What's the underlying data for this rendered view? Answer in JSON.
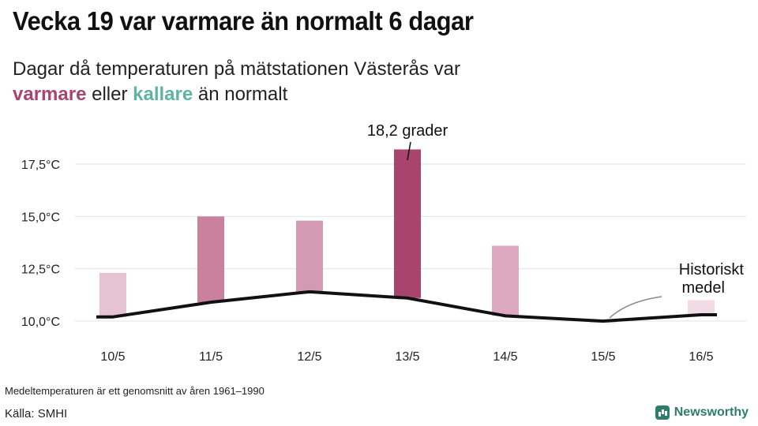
{
  "title": "Vecka 19 var varmare än normalt 6 dagar",
  "subtitle": {
    "line1": "Dagar då temperaturen på mätstationen Västerås var",
    "warm_word": "varmare",
    "mid": "eller",
    "cold_word": "kallare",
    "end": "än normalt"
  },
  "colors": {
    "warm_accent": "#a8446e",
    "cold_accent": "#5fb3a3",
    "line": "#111111"
  },
  "chart_data": {
    "type": "bar",
    "categories": [
      "10/5",
      "11/5",
      "12/5",
      "13/5",
      "14/5",
      "15/5",
      "16/5"
    ],
    "series": [
      {
        "values": [
          12.3,
          15.0,
          14.8,
          18.2,
          13.6,
          9.9,
          11.0
        ]
      },
      {
        "values": [
          10.2,
          10.9,
          11.4,
          11.1,
          10.25,
          10.0,
          10.3
        ]
      }
    ],
    "bar_colors": [
      "#e7c3d2",
      "#c9819e",
      "#d29bb3",
      "#a8446e",
      "#dba8bf",
      "#e0eeea",
      "#f1dce5"
    ],
    "yticks": [
      "10,0°C",
      "12,5°C",
      "15,0°C",
      "17,5°C"
    ],
    "ytick_values": [
      10,
      12.5,
      15,
      17.5
    ],
    "ylim": [
      9.0,
      19.5
    ],
    "grid": true,
    "annotations": {
      "max_label": "18,2 grader",
      "line_label_1": "Historiskt",
      "line_label_2": "medel"
    }
  },
  "footnote": "Medeltemperaturen är ett genomsnitt av åren 1961–1990",
  "source": "Källa: SMHI",
  "brand": "Newsworthy"
}
